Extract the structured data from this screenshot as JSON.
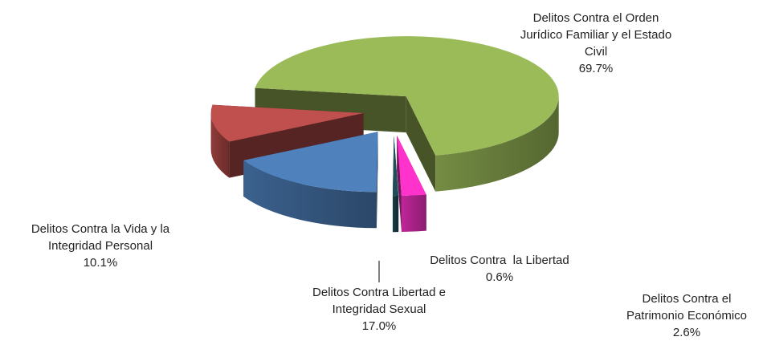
{
  "chart_data": {
    "type": "pie3d",
    "categories": [
      "Delitos Contra el Orden Jurídico Familiar y el Estado Civil",
      "Delitos Contra el Patrimonio Económico",
      "Delitos Contra  la Libertad",
      "Delitos Contra Libertad e Integridad Sexual",
      "Delitos Contra la Vida y la Integridad Personal"
    ],
    "values": [
      69.7,
      2.6,
      0.6,
      17.0,
      10.1
    ],
    "value_labels": [
      "69.7%",
      "2.6%",
      "0.6%",
      "17.0%",
      "10.1%"
    ],
    "colors": [
      "#9bbb59",
      "#ff33cc",
      "#1f4e5a",
      "#4f81bd",
      "#c0504d"
    ]
  }
}
